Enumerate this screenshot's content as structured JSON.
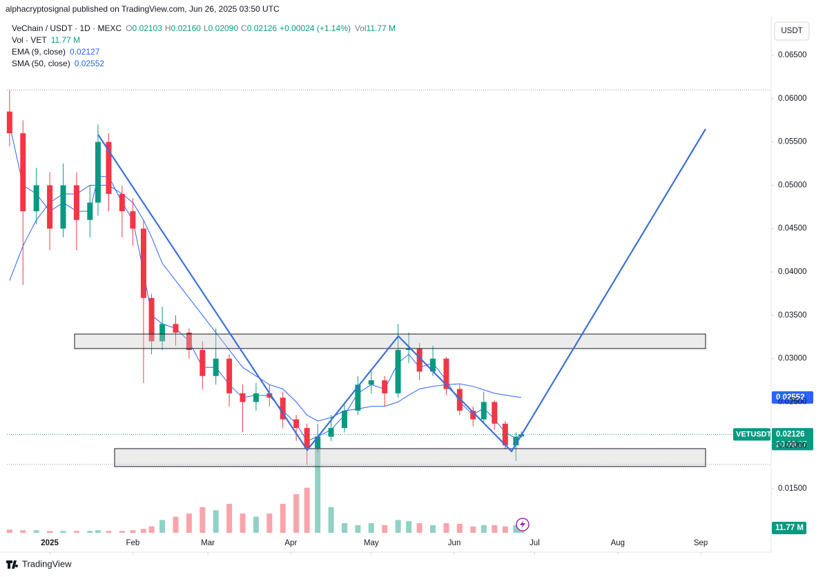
{
  "header": {
    "publisher": "alphacryptosignal published on TradingView.com, Jun 26, 2025 03:50 UTC",
    "symbol": "VeChain / USDT · 1D · MEXC",
    "ohlc": [
      {
        "key": "O",
        "value": "0.02103"
      },
      {
        "key": "H",
        "value": "0.02160"
      },
      {
        "key": "L",
        "value": "0.02090"
      },
      {
        "key": "C",
        "value": "0.02126"
      }
    ],
    "change": "+0.00024 (+1.14%)",
    "vol_key": "Vol",
    "vol_value": "11.77 M"
  },
  "chart_data": {
    "type": "candlestick",
    "x": [
      -15,
      -10,
      -5,
      0,
      5,
      10,
      15,
      18,
      22,
      27,
      31,
      35,
      38,
      42,
      47,
      52,
      57,
      62,
      67,
      72,
      77,
      82,
      87,
      92,
      96,
      100,
      105,
      110,
      115,
      120,
      125,
      130,
      134,
      138,
      143,
      148,
      153,
      158,
      162,
      166,
      170,
      174,
      176
    ],
    "open": [
      0.0585,
      0.056,
      0.047,
      0.05,
      0.045,
      0.05,
      0.046,
      0.048,
      0.055,
      0.049,
      0.047,
      0.045,
      0.037,
      0.032,
      0.034,
      0.033,
      0.031,
      0.028,
      0.03,
      0.026,
      0.025,
      0.026,
      0.0255,
      0.023,
      0.022,
      0.0197,
      0.021,
      0.022,
      0.024,
      0.027,
      0.0275,
      0.026,
      0.031,
      0.0312,
      0.0285,
      0.03,
      0.0265,
      0.024,
      0.023,
      0.025,
      0.0225,
      0.02,
      0.02103
    ],
    "high": [
      0.061,
      0.0575,
      0.052,
      0.0515,
      0.0525,
      0.0515,
      0.05,
      0.057,
      0.056,
      0.05,
      0.0485,
      0.046,
      0.0375,
      0.036,
      0.035,
      0.0335,
      0.032,
      0.0335,
      0.0305,
      0.027,
      0.0272,
      0.027,
      0.0262,
      0.0235,
      0.0225,
      0.0225,
      0.0235,
      0.025,
      0.028,
      0.0285,
      0.028,
      0.034,
      0.033,
      0.0318,
      0.0315,
      0.0302,
      0.027,
      0.0245,
      0.0262,
      0.0252,
      0.0228,
      0.0215,
      0.0216
    ],
    "low": [
      0.0545,
      0.0385,
      0.0455,
      0.0425,
      0.044,
      0.0425,
      0.044,
      0.0465,
      0.047,
      0.044,
      0.043,
      0.0272,
      0.0305,
      0.031,
      0.0315,
      0.03,
      0.0265,
      0.027,
      0.0245,
      0.0215,
      0.024,
      0.0245,
      0.022,
      0.0205,
      0.0178,
      0.0192,
      0.0205,
      0.0215,
      0.0235,
      0.026,
      0.0245,
      0.0255,
      0.0295,
      0.0275,
      0.028,
      0.0258,
      0.0235,
      0.0222,
      0.0225,
      0.0218,
      0.0195,
      0.0182,
      0.0209
    ],
    "close": [
      0.056,
      0.047,
      0.05,
      0.045,
      0.05,
      0.046,
      0.048,
      0.055,
      0.049,
      0.047,
      0.045,
      0.037,
      0.032,
      0.034,
      0.033,
      0.031,
      0.028,
      0.03,
      0.026,
      0.025,
      0.026,
      0.0255,
      0.023,
      0.022,
      0.0197,
      0.021,
      0.022,
      0.024,
      0.027,
      0.0275,
      0.026,
      0.031,
      0.0312,
      0.0285,
      0.03,
      0.0265,
      0.024,
      0.023,
      0.025,
      0.0225,
      0.02,
      0.021,
      0.02126
    ],
    "up_color": "#089981",
    "down_color": "#f23645",
    "series": [
      {
        "name": "EMA (9, close)",
        "color": "#2962ff",
        "values": [
          0.057,
          0.05,
          0.049,
          0.047,
          0.048,
          0.047,
          0.047,
          0.051,
          0.051,
          0.048,
          0.046,
          0.04,
          0.035,
          0.034,
          0.0335,
          0.032,
          0.029,
          0.029,
          0.027,
          0.0255,
          0.0258,
          0.0257,
          0.024,
          0.0225,
          0.0205,
          0.021,
          0.0218,
          0.0235,
          0.026,
          0.027,
          0.0265,
          0.0295,
          0.0305,
          0.029,
          0.0295,
          0.0275,
          0.025,
          0.0235,
          0.0243,
          0.023,
          0.0215,
          0.0208,
          0.02127
        ]
      },
      {
        "name": "SMA (50, close)",
        "color": "#2962ff",
        "values": [
          0.039,
          0.043,
          0.046,
          0.048,
          0.049,
          0.049,
          0.05,
          0.05,
          0.05,
          0.049,
          0.048,
          0.046,
          0.044,
          0.041,
          0.039,
          0.037,
          0.035,
          0.033,
          0.031,
          0.029,
          0.028,
          0.027,
          0.0265,
          0.025,
          0.0235,
          0.0228,
          0.0232,
          0.024,
          0.0242,
          0.0245,
          0.0245,
          0.025,
          0.0258,
          0.0265,
          0.0268,
          0.027,
          0.0271,
          0.0268,
          0.0264,
          0.026,
          0.0258,
          0.0256,
          0.02552
        ]
      }
    ],
    "volume": {
      "name": "Vol · VET",
      "values": [
        5,
        4,
        4,
        3,
        3,
        3,
        3,
        4,
        3,
        3,
        4,
        6,
        10,
        20,
        25,
        30,
        40,
        35,
        45,
        30,
        25,
        30,
        45,
        60,
        70,
        150,
        40,
        15,
        12,
        15,
        12,
        20,
        18,
        15,
        12,
        15,
        14,
        10,
        12,
        12,
        10,
        12,
        11.77
      ],
      "last_label": "11.77 M"
    },
    "xlim": [
      -16,
      269
    ],
    "ylim": [
      0.00967,
      0.06898
    ],
    "xticks": [
      {
        "value": 0,
        "label": "2025"
      },
      {
        "value": 31,
        "label": "Feb"
      },
      {
        "value": 59,
        "label": "Mar"
      },
      {
        "value": 90,
        "label": "Apr"
      },
      {
        "value": 120,
        "label": "May"
      },
      {
        "value": 151,
        "label": "Jun"
      },
      {
        "value": 181,
        "label": "Jul"
      },
      {
        "value": 212,
        "label": "Aug"
      },
      {
        "value": 243,
        "label": "Sep"
      }
    ],
    "yticks": [
      {
        "value": 0.015,
        "label": "0.01500"
      },
      {
        "value": 0.02,
        "label": "0.02000"
      },
      {
        "value": 0.025,
        "label": "0.02500"
      },
      {
        "value": 0.03,
        "label": "0.03000"
      },
      {
        "value": 0.035,
        "label": "0.03500"
      },
      {
        "value": 0.04,
        "label": "0.04000"
      },
      {
        "value": 0.045,
        "label": "0.04500"
      },
      {
        "value": 0.05,
        "label": "0.05000"
      },
      {
        "value": 0.055,
        "label": "0.05500"
      },
      {
        "value": 0.06,
        "label": "0.06000"
      },
      {
        "value": 0.065,
        "label": "0.06500"
      }
    ],
    "currency": "USDT",
    "symbol_tag": "VETUSDT",
    "countdown": "20:09:07"
  },
  "footer": "TradingView"
}
